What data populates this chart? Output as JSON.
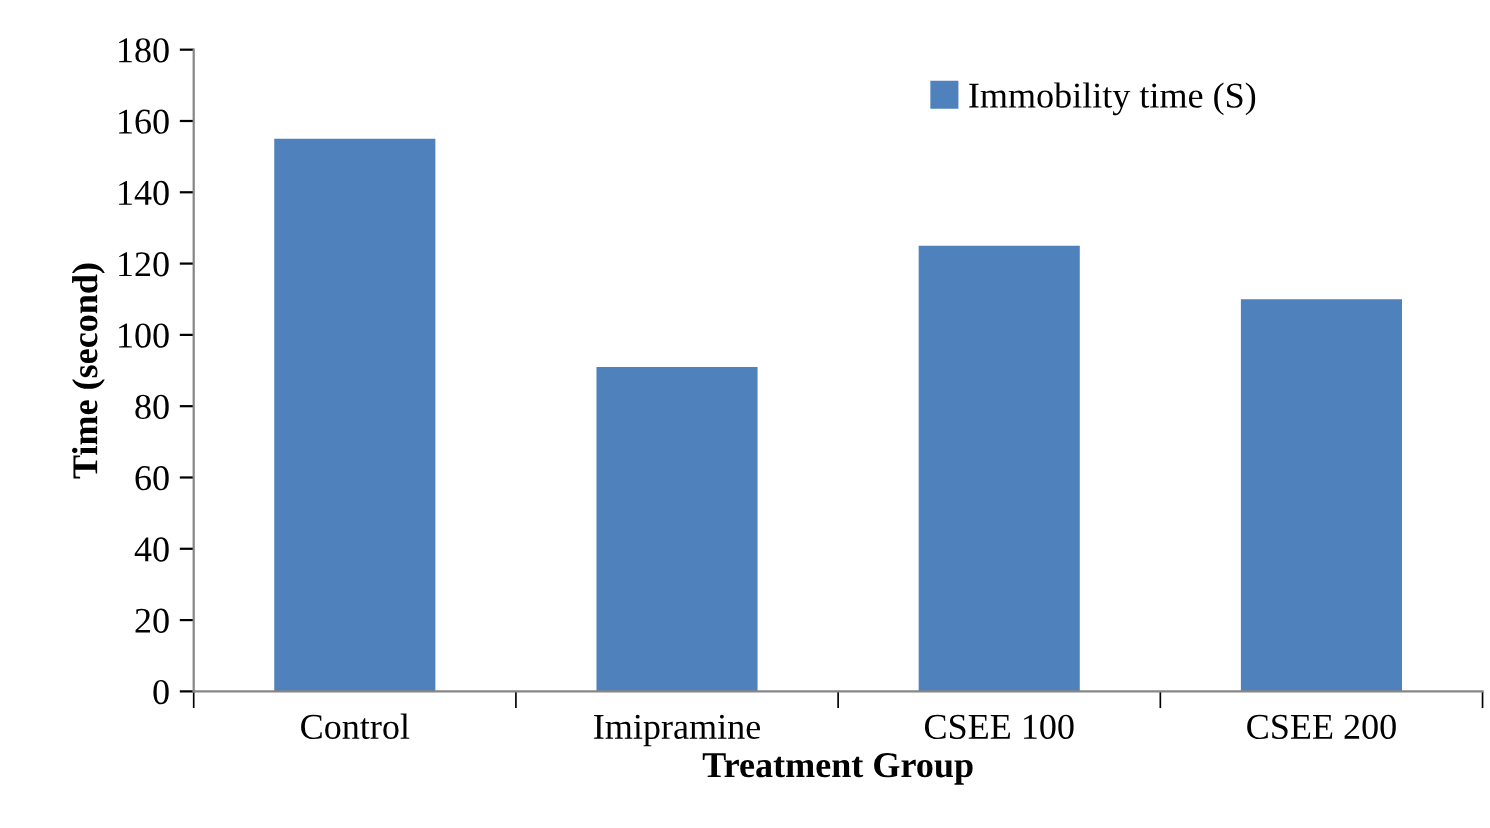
{
  "chart_data": {
    "type": "bar",
    "xlabel": "Treatment Group",
    "ylabel": "Time (second)",
    "categories": [
      "Control",
      "Imipramine",
      "CSEE 100",
      "CSEE 200"
    ],
    "series": [
      {
        "name": "Immobility time (S)",
        "color": "#4f81bd",
        "values": [
          155,
          91,
          125,
          110
        ]
      }
    ],
    "ylim": [
      0,
      180
    ],
    "yticks": [
      0,
      20,
      40,
      60,
      80,
      100,
      120,
      140,
      160,
      180
    ],
    "grid": false,
    "legend": "top right"
  }
}
